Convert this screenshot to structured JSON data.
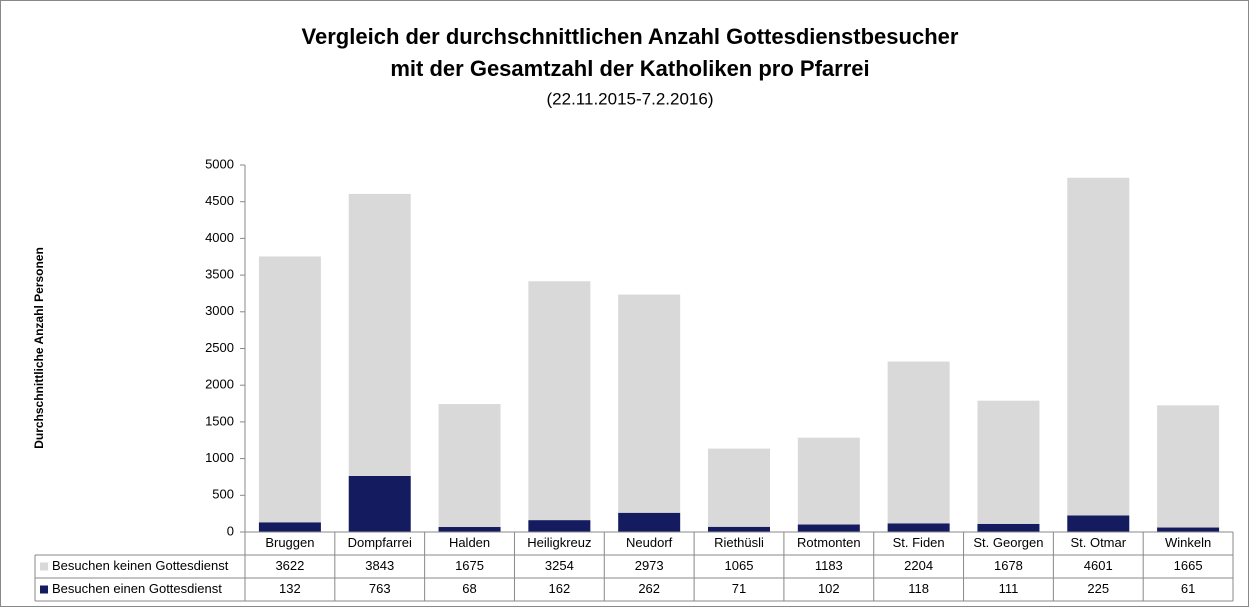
{
  "chart_data": {
    "type": "stacked_bar",
    "title": [
      "Vergleich der durchschnittlichen Anzahl Gottesdienstbesucher",
      "mit der Gesamtzahl der Katholiken pro Pfarrei"
    ],
    "subtitle": "(22.11.2015-7.2.2016)",
    "y_label": "Durchschnittliche Anzahl Personen",
    "categories": [
      "Bruggen",
      "Dompfarrei",
      "Halden",
      "Heiligkreuz",
      "Neudorf",
      "Riethüsli",
      "Rotmonten",
      "St. Fiden",
      "St. Georgen",
      "St. Otmar",
      "Winkeln"
    ],
    "series": [
      {
        "name": "Besuchen keinen Gottesdienst",
        "color": "#d9d9d9",
        "values": [
          3622,
          3843,
          1675,
          3254,
          2973,
          1065,
          1183,
          2204,
          1678,
          4601,
          1665
        ]
      },
      {
        "name": "Besuchen einen Gottesdienst",
        "color": "#141b5e",
        "values": [
          132,
          763,
          68,
          162,
          262,
          71,
          102,
          118,
          111,
          225,
          61
        ]
      }
    ],
    "ylim": [
      0,
      5000
    ],
    "yticks": [
      0,
      500,
      1000,
      1500,
      2000,
      2500,
      3000,
      3500,
      4000,
      4500,
      5000
    ],
    "grid": false
  }
}
